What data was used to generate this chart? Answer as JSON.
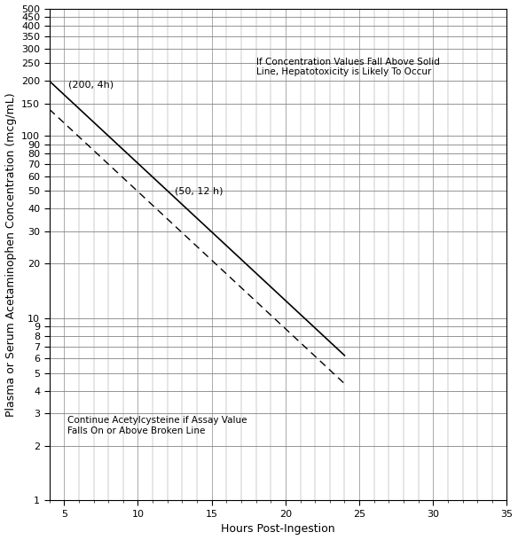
{
  "xlabel": "Hours Post-Ingestion",
  "ylabel": "Plasma or Serum Acetaminophen Concentration (mcg/mL)",
  "xlim": [
    4,
    35
  ],
  "ylim_log": [
    1,
    500
  ],
  "solid_line_x": [
    4,
    24
  ],
  "solid_line_y": [
    200,
    6.25
  ],
  "dashed_line_x": [
    4,
    24
  ],
  "dashed_line_y": [
    140,
    4.375
  ],
  "ann1_text": "(200, 4h)",
  "ann1_x": 5.3,
  "ann1_y": 190,
  "ann2_text": "(50, 12 h)",
  "ann2_x": 12.5,
  "ann2_y": 50,
  "ann3_text": "Continue Acetylcysteine if Assay Value\nFalls On or Above Broken Line",
  "ann3_x": 5.2,
  "ann3_y": 2.9,
  "ann4_text": "If Concentration Values Fall Above Solid\nLine, Hepatotoxicity is Likely To Occur",
  "ann4_x": 18.0,
  "ann4_y": 270,
  "line_color": "#000000",
  "text_color": "#000000",
  "grid_major_color": "#888888",
  "grid_minor_color": "#cccccc",
  "background_color": "#ffffff",
  "linewidth_solid": 1.2,
  "linewidth_dashed": 1.0,
  "fontsize_ann": 8,
  "fontsize_tick": 8,
  "fontsize_label": 9
}
